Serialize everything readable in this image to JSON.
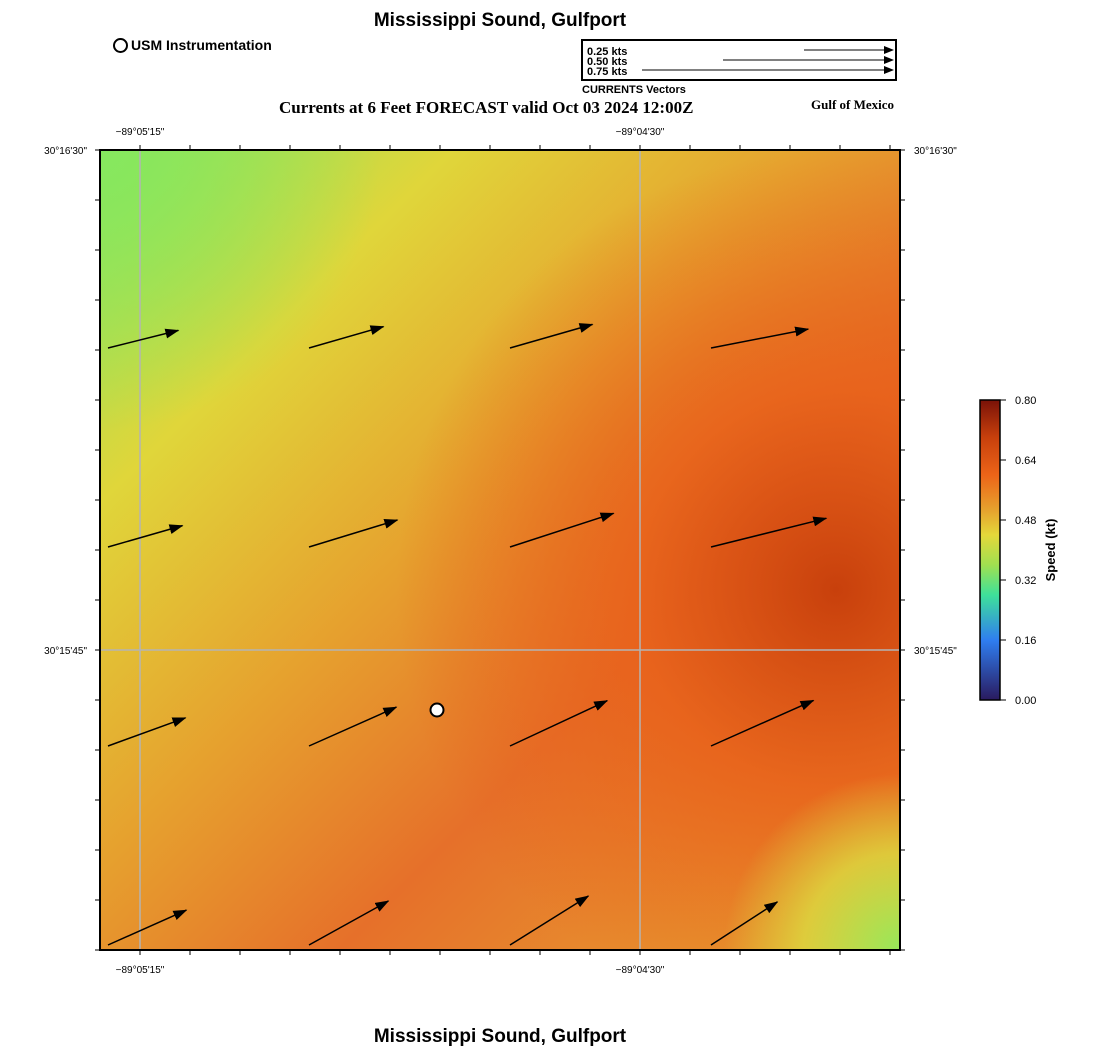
{
  "header": {
    "title": "Mississippi Sound, Gulfport",
    "usm_label": "USM Instrumentation",
    "subtitle": "Currents at 6 Feet FORECAST valid Oct 03 2024 12:00Z",
    "region": "Gulf of Mexico"
  },
  "vector_legend": {
    "entries": [
      "0.25 kts",
      "0.50 kts",
      "0.75 kts"
    ],
    "speeds_kt": [
      0.25,
      0.5,
      0.75
    ],
    "caption": "CURRENTS Vectors"
  },
  "axes": {
    "lon_labels": [
      "−89°05'15\"",
      "−89°04'30\""
    ],
    "lat_labels": [
      "30°16'30\"",
      "30°15'45\""
    ]
  },
  "colorbar": {
    "title": "Speed (kt)",
    "ticks": [
      "0.80",
      "0.64",
      "0.48",
      "0.32",
      "0.16",
      "0.00"
    ],
    "colors": [
      "#7a1208",
      "#c8400c",
      "#ec6418",
      "#e6a42e",
      "#e4d83a",
      "#a0e050",
      "#3ee09a",
      "#2f7ef0",
      "#2a1a5e"
    ]
  },
  "vectors": {
    "speed_kt": [
      [
        0.44,
        0.47,
        0.52,
        0.6
      ],
      [
        0.47,
        0.56,
        0.66,
        0.72
      ],
      [
        0.5,
        0.58,
        0.65,
        0.68
      ],
      [
        0.52,
        0.55,
        0.56,
        0.48
      ]
    ],
    "direction_deg_from_east": [
      14,
      16,
      16,
      11,
      16,
      17,
      18,
      14,
      20,
      24,
      25,
      24,
      24,
      29,
      32,
      33
    ]
  },
  "footer": {
    "title": "Mississippi Sound, Gulfport"
  }
}
